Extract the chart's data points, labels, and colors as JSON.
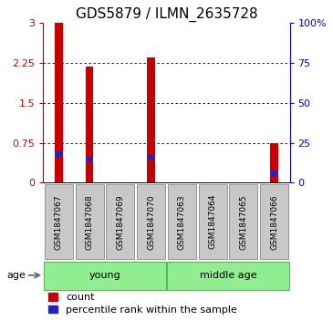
{
  "title": "GDS5879 / ILMN_2635728",
  "samples": [
    "GSM1847067",
    "GSM1847068",
    "GSM1847069",
    "GSM1847070",
    "GSM1847063",
    "GSM1847064",
    "GSM1847065",
    "GSM1847066"
  ],
  "red_values": [
    3.0,
    2.18,
    0.0,
    2.35,
    0.0,
    0.0,
    0.0,
    0.75
  ],
  "blue_pct": [
    18,
    15,
    0,
    16,
    0,
    0,
    0,
    6
  ],
  "ylim_left": [
    0,
    3
  ],
  "ylim_right": [
    0,
    100
  ],
  "yticks_left": [
    0,
    0.75,
    1.5,
    2.25,
    3
  ],
  "yticks_right": [
    0,
    25,
    50,
    75,
    100
  ],
  "bar_color_red": "#CC0000",
  "bar_color_blue": "#2222CC",
  "bar_bg_color": "#C8C8C8",
  "green_color": "#90EE90",
  "green_edge_color": "#55BB55",
  "title_fontsize": 11,
  "tick_fontsize": 8,
  "label_fontsize": 8,
  "legend_fontsize": 8,
  "sample_fontsize": 6.5
}
